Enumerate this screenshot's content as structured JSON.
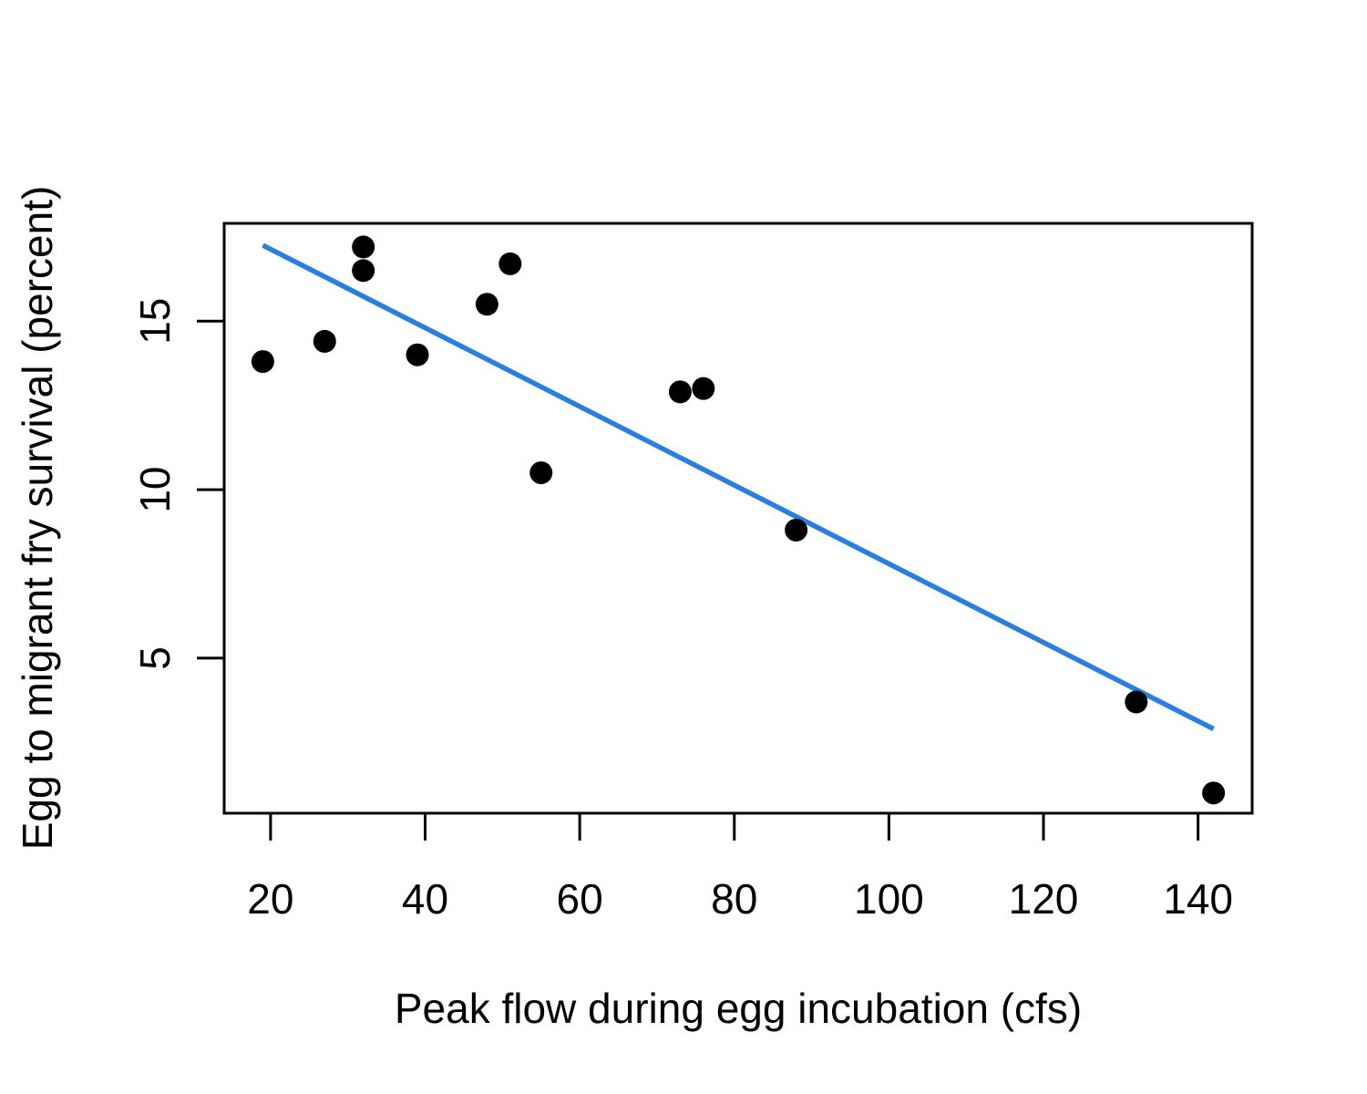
{
  "chart_data": {
    "type": "scatter",
    "title": "",
    "xlabel": "Peak flow during egg incubation (cfs)",
    "ylabel": "Egg to migrant fry survival (percent)",
    "xlim": [
      14,
      147
    ],
    "ylim": [
      0.4,
      17.9
    ],
    "x_ticks": [
      20,
      40,
      60,
      80,
      100,
      120,
      140
    ],
    "y_ticks": [
      5,
      10,
      15
    ],
    "x_tick_labels": [
      "20",
      "40",
      "60",
      "80",
      "100",
      "120",
      "140"
    ],
    "y_tick_labels": [
      "5",
      "10",
      "15"
    ],
    "grid": false,
    "legend": "none",
    "points": [
      {
        "x": 19,
        "y": 13.8
      },
      {
        "x": 27,
        "y": 14.4
      },
      {
        "x": 32,
        "y": 17.2
      },
      {
        "x": 32,
        "y": 16.5
      },
      {
        "x": 39,
        "y": 14.0
      },
      {
        "x": 48,
        "y": 15.5
      },
      {
        "x": 51,
        "y": 16.7
      },
      {
        "x": 55,
        "y": 10.5
      },
      {
        "x": 73,
        "y": 12.9
      },
      {
        "x": 76,
        "y": 13.0
      },
      {
        "x": 88,
        "y": 8.8
      },
      {
        "x": 132,
        "y": 3.7
      },
      {
        "x": 142,
        "y": 1.0
      }
    ],
    "fit_line": {
      "x": [
        19,
        142
      ],
      "y": [
        17.25,
        2.9
      ]
    },
    "colors": {
      "points": "#000000",
      "fit_line": "#2A7FDE",
      "axes": "#000000"
    }
  }
}
